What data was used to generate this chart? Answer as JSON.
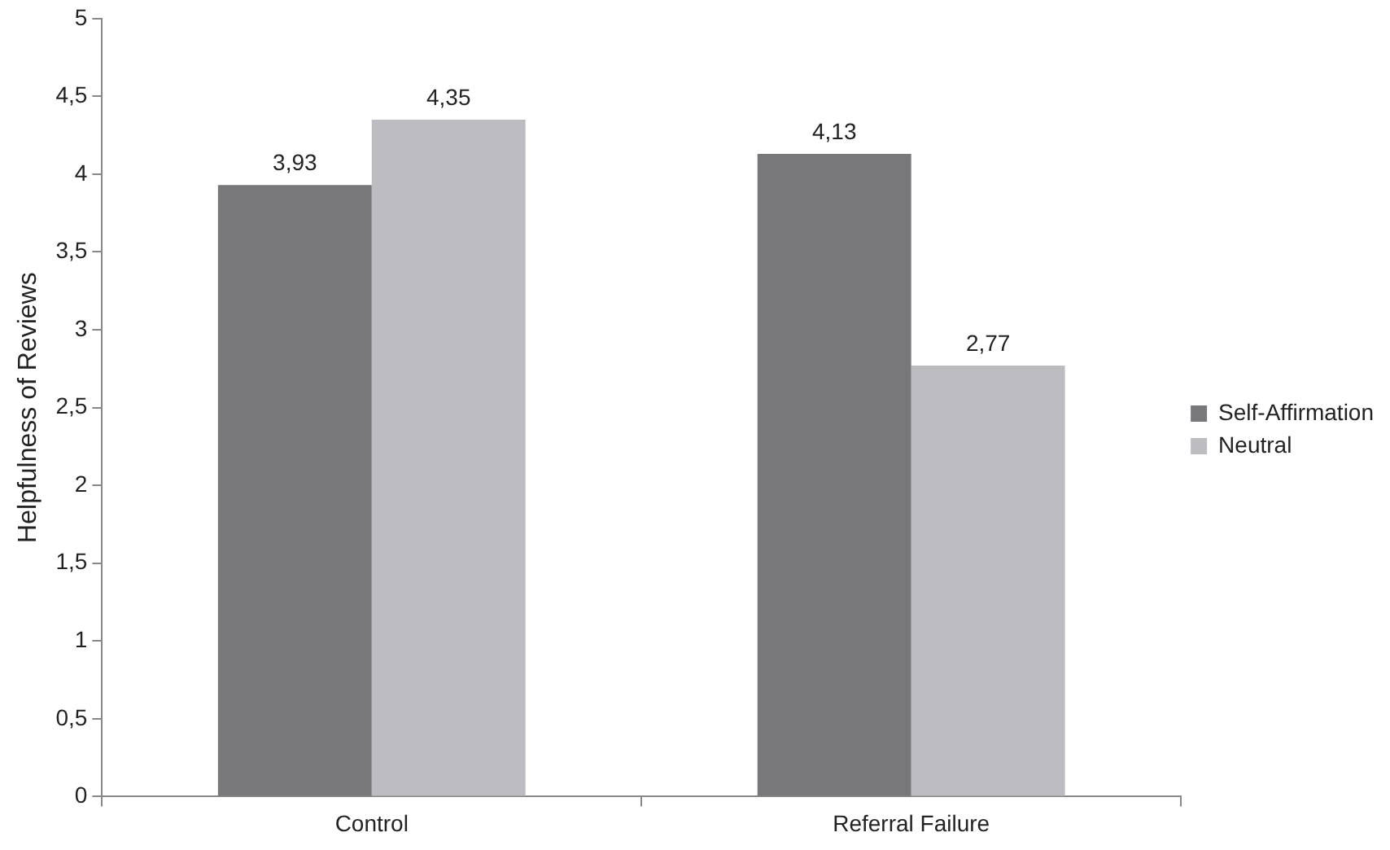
{
  "chart_data": {
    "type": "bar",
    "ylabel": "Helpfulness of Reviews",
    "categories": [
      "Control",
      "Referral Failure"
    ],
    "series": [
      {
        "name": "Self-Affirmation",
        "color": "#78787b",
        "values": [
          3.93,
          4.13
        ],
        "value_labels": [
          "3,93",
          "4,13"
        ]
      },
      {
        "name": "Neutral",
        "color": "#bdbdc1",
        "values": [
          4.35,
          2.77
        ],
        "value_labels": [
          "4,35",
          "2,77"
        ]
      }
    ],
    "ylim": [
      0,
      5
    ],
    "yticks": [
      0,
      {
        "value": 0.5,
        "label": "0,5"
      },
      1,
      {
        "value": 1.5,
        "label": "1,5"
      },
      2,
      {
        "value": 2.5,
        "label": "2,5"
      },
      3,
      {
        "value": 3.5,
        "label": "3,5"
      },
      4,
      {
        "value": 4.5,
        "label": "4,5"
      },
      5
    ],
    "grid": false,
    "legend": "right"
  }
}
